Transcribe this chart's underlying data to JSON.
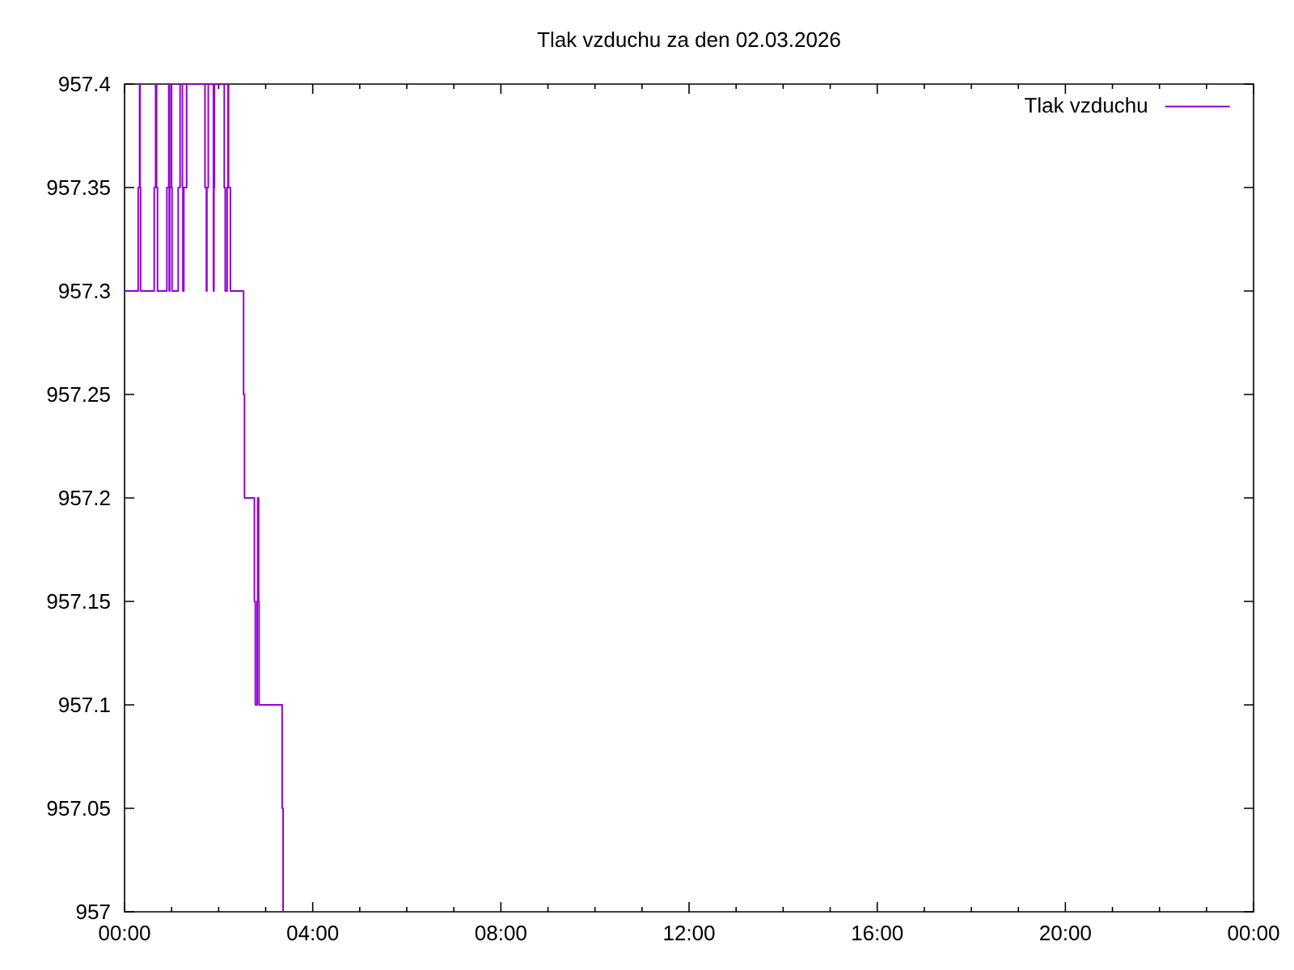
{
  "chart_data": {
    "type": "step",
    "title": "Tlak vzduchu za den 02.03.2026",
    "x": [
      0,
      0.29,
      0.32,
      0.33,
      0.34,
      0.63,
      0.66,
      0.68,
      0.7,
      0.9,
      0.94,
      0.95,
      0.96,
      0.99,
      1.0,
      1.01,
      1.14,
      1.18,
      1.23,
      1.24,
      1.26,
      1.32,
      1.71,
      1.74,
      1.75,
      1.78,
      1.89,
      1.9,
      1.91,
      2.12,
      2.14,
      2.18,
      2.2,
      2.21,
      2.25,
      2.53,
      2.55,
      2.76,
      2.78,
      2.82,
      2.83,
      2.85,
      2.86,
      3.35,
      3.37
    ],
    "series": [
      {
        "name": "Tlak vzduchu",
        "color": "#9400d3",
        "values": [
          957.3,
          957.35,
          957.4,
          957.35,
          957.3,
          957.35,
          957.4,
          957.35,
          957.3,
          957.35,
          957.4,
          957.3,
          957.35,
          957.4,
          957.35,
          957.3,
          957.35,
          957.4,
          957.35,
          957.3,
          957.35,
          957.4,
          957.35,
          957.3,
          957.35,
          957.4,
          957.3,
          957.35,
          957.4,
          957.35,
          957.3,
          957.35,
          957.4,
          957.35,
          957.3,
          957.25,
          957.2,
          957.15,
          957.1,
          957.15,
          957.2,
          957.15,
          957.1,
          957.05,
          957
        ]
      }
    ],
    "xlim": [
      0,
      24
    ],
    "ylim": [
      957,
      957.4
    ],
    "xticks": [
      {
        "value": 0,
        "label": "00:00"
      },
      {
        "value": 1,
        "label": null
      },
      {
        "value": 2,
        "label": null
      },
      {
        "value": 3,
        "label": null
      },
      {
        "value": 4,
        "label": "04:00"
      },
      {
        "value": 5,
        "label": null
      },
      {
        "value": 6,
        "label": null
      },
      {
        "value": 7,
        "label": null
      },
      {
        "value": 8,
        "label": "08:00"
      },
      {
        "value": 9,
        "label": null
      },
      {
        "value": 10,
        "label": null
      },
      {
        "value": 11,
        "label": null
      },
      {
        "value": 12,
        "label": "12:00"
      },
      {
        "value": 13,
        "label": null
      },
      {
        "value": 14,
        "label": null
      },
      {
        "value": 15,
        "label": null
      },
      {
        "value": 16,
        "label": "16:00"
      },
      {
        "value": 17,
        "label": null
      },
      {
        "value": 18,
        "label": null
      },
      {
        "value": 19,
        "label": null
      },
      {
        "value": 20,
        "label": "20:00"
      },
      {
        "value": 21,
        "label": null
      },
      {
        "value": 22,
        "label": null
      },
      {
        "value": 23,
        "label": null
      },
      {
        "value": 24,
        "label": "00:00"
      }
    ],
    "yticks": [
      957,
      957.05,
      957.1,
      957.15,
      957.2,
      957.25,
      957.3,
      957.35,
      957.4
    ],
    "legend": "top right"
  }
}
